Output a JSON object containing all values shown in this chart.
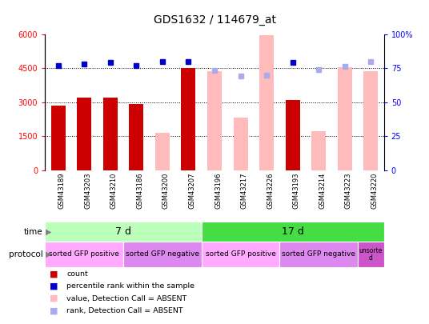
{
  "title": "GDS1632 / 114679_at",
  "samples": [
    "GSM43189",
    "GSM43203",
    "GSM43210",
    "GSM43186",
    "GSM43200",
    "GSM43207",
    "GSM43196",
    "GSM43217",
    "GSM43226",
    "GSM43193",
    "GSM43214",
    "GSM43223",
    "GSM43220"
  ],
  "bar_values": [
    2850,
    3200,
    3200,
    2900,
    1650,
    4500,
    4350,
    2300,
    5950,
    3100,
    1700,
    4550,
    4350
  ],
  "bar_colors": [
    "#cc0000",
    "#cc0000",
    "#cc0000",
    "#cc0000",
    "#ffbbbb",
    "#cc0000",
    "#ffbbbb",
    "#ffbbbb",
    "#ffbbbb",
    "#cc0000",
    "#ffbbbb",
    "#ffbbbb",
    "#ffbbbb"
  ],
  "percentile_values": [
    77,
    78,
    79,
    77,
    80,
    80,
    73,
    69,
    70,
    79,
    74,
    76,
    80
  ],
  "percentile_colors": [
    "#0000cc",
    "#0000cc",
    "#0000cc",
    "#0000cc",
    "#0000cc",
    "#0000cc",
    "#aaaaee",
    "#aaaaee",
    "#aaaaee",
    "#0000cc",
    "#aaaaee",
    "#aaaaee",
    "#aaaaee"
  ],
  "ylim_left": [
    0,
    6000
  ],
  "ylim_right": [
    0,
    100
  ],
  "yticks_left": [
    0,
    1500,
    3000,
    4500,
    6000
  ],
  "yticks_right": [
    0,
    25,
    50,
    75,
    100
  ],
  "grid_values": [
    1500,
    3000,
    4500
  ],
  "time_labels": [
    {
      "label": "7 d",
      "start": 0,
      "end": 5,
      "color": "#bbffbb"
    },
    {
      "label": "17 d",
      "start": 6,
      "end": 12,
      "color": "#44dd44"
    }
  ],
  "protocol_labels": [
    {
      "label": "sorted GFP positive",
      "start": 0,
      "end": 2,
      "color": "#ffaaff"
    },
    {
      "label": "sorted GFP negative",
      "start": 3,
      "end": 5,
      "color": "#dd88ee"
    },
    {
      "label": "sorted GFP positive",
      "start": 6,
      "end": 8,
      "color": "#ffaaff"
    },
    {
      "label": "sorted GFP negative",
      "start": 9,
      "end": 11,
      "color": "#dd88ee"
    },
    {
      "label": "unsorte\nd",
      "start": 12,
      "end": 12,
      "color": "#cc55cc"
    }
  ],
  "bar_width": 0.55,
  "background_color": "#ffffff",
  "plot_bg_color": "#ffffff",
  "title_fontsize": 10,
  "tick_fontsize": 7,
  "label_fontsize": 7.5
}
